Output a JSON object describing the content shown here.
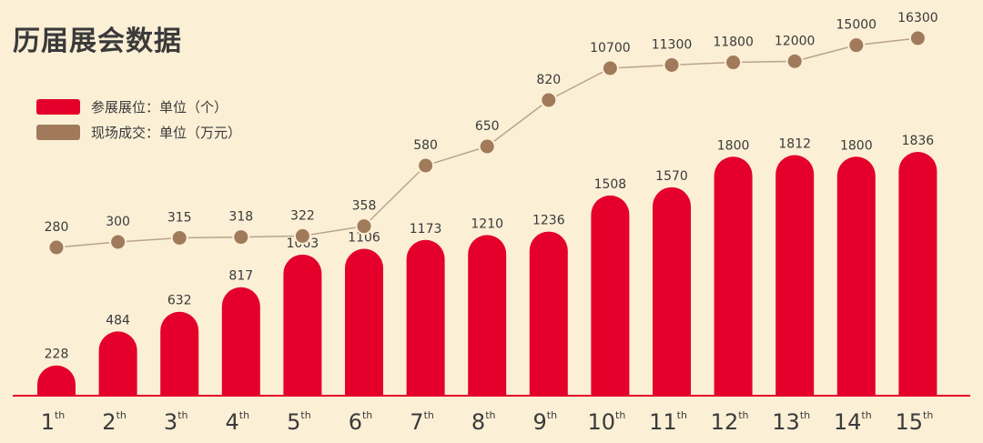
{
  "title": "历届展会数据",
  "legend": {
    "booths_label": "参展展位：单位（个）",
    "sales_label": "现场成交：单位（万元）"
  },
  "colors": {
    "background": "#fbefd6",
    "bar": "#e4002b",
    "line": "#b9a48a",
    "marker_fill": "#a07a5a",
    "marker_ring": "#fbefd6",
    "text": "#3a3a3a"
  },
  "chart_data": {
    "type": "bar",
    "categories": [
      {
        "num": "1",
        "sup": "th"
      },
      {
        "num": "2",
        "sup": "th"
      },
      {
        "num": "3",
        "sup": "th"
      },
      {
        "num": "4",
        "sup": "th"
      },
      {
        "num": "5",
        "sup": "th"
      },
      {
        "num": "6",
        "sup": "th"
      },
      {
        "num": "7",
        "sup": "th"
      },
      {
        "num": "8",
        "sup": "th"
      },
      {
        "num": "9",
        "sup": "th"
      },
      {
        "num": "10",
        "sup": "th"
      },
      {
        "num": "11",
        "sup": "th"
      },
      {
        "num": "12",
        "sup": "th"
      },
      {
        "num": "13",
        "sup": "th"
      },
      {
        "num": "14",
        "sup": "th"
      },
      {
        "num": "15",
        "sup": "th"
      }
    ],
    "series": [
      {
        "name": "参展展位：单位（个）",
        "type": "bar",
        "values": [
          228,
          484,
          632,
          817,
          1063,
          1106,
          1173,
          1210,
          1236,
          1508,
          1570,
          1800,
          1812,
          1800,
          1836
        ]
      },
      {
        "name": "现场成交：单位（万元）",
        "type": "line",
        "values": [
          280,
          300,
          315,
          318,
          322,
          358,
          580,
          650,
          820,
          10700,
          11300,
          11800,
          12000,
          15000,
          16300
        ]
      }
    ],
    "grid": false,
    "legend_position": "top-left"
  }
}
